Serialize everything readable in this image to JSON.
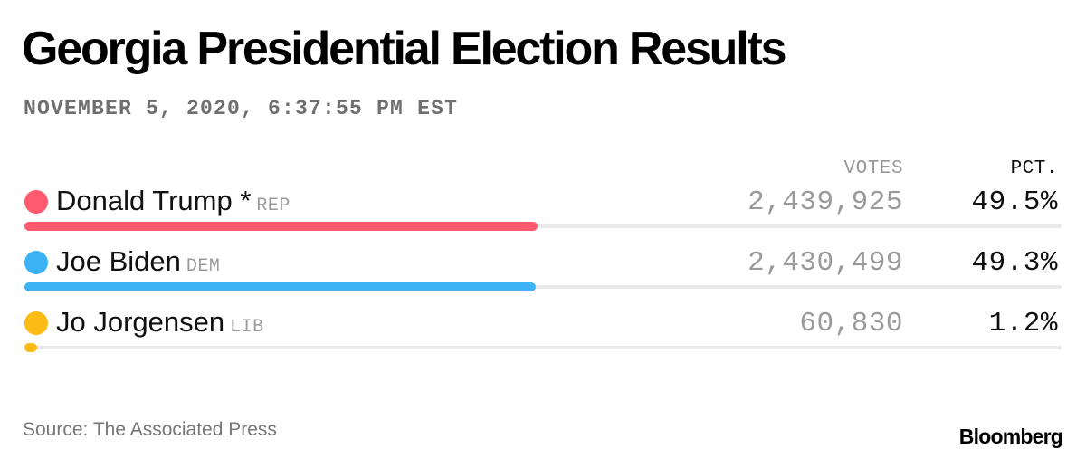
{
  "title": "Georgia Presidential Election Results",
  "timestamp": "NOVEMBER 5, 2020, 6:37:55 PM EST",
  "columns": {
    "votes": "VOTES",
    "pct": "PCT."
  },
  "candidates": [
    {
      "name": "Donald Trump *",
      "party": "REP",
      "votes": "2,439,925",
      "pct": "49.5%",
      "color": "#ff5a6e"
    },
    {
      "name": "Joe Biden",
      "party": "DEM",
      "votes": "2,430,499",
      "pct": "49.3%",
      "color": "#3bb3f5"
    },
    {
      "name": "Jo Jorgensen",
      "party": "LIB",
      "votes": "60,830",
      "pct": "1.2%",
      "color": "#fdbb16"
    }
  ],
  "source": "Source: The Associated Press",
  "brand": "Bloomberg",
  "chart_data": {
    "type": "bar",
    "orientation": "horizontal",
    "title": "Georgia Presidential Election Results",
    "subtitle": "NOVEMBER 5, 2020, 6:37:55 PM EST",
    "categories": [
      "Donald Trump *",
      "Joe Biden",
      "Jo Jorgensen"
    ],
    "values": [
      49.5,
      49.3,
      1.2
    ],
    "votes": [
      2439925,
      2430499,
      60830
    ],
    "parties": [
      "REP",
      "DEM",
      "LIB"
    ],
    "colors": [
      "#ff5a6e",
      "#3bb3f5",
      "#fdbb16"
    ],
    "xlim": [
      0,
      100
    ],
    "grid": false,
    "source": "Source: The Associated Press"
  }
}
